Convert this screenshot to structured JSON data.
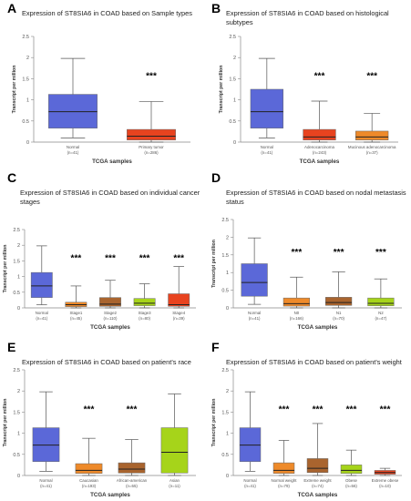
{
  "chart_data": [
    {
      "panel": "A",
      "type": "box",
      "title": [
        "Expression of ST8SIA6 in COAD based on Sample types"
      ],
      "xlabel": "TCGA samples",
      "ylabel": "Transcript per million",
      "ylim": [
        0,
        2.5
      ],
      "yticks": [
        "0",
        "0.5",
        "1",
        "1.5",
        "2",
        "2.5"
      ],
      "groups": [
        {
          "label": "Normal",
          "n": "(n=41)",
          "color": "#5b68d8",
          "min": 0.1,
          "q1": 0.33,
          "median": 0.72,
          "q3": 1.13,
          "max": 1.98,
          "sig": ""
        },
        {
          "label": "Primary tumor",
          "n": "(n=286)",
          "color": "#e8431f",
          "min": 0.0,
          "q1": 0.05,
          "median": 0.14,
          "q3": 0.3,
          "max": 0.96,
          "sig": "***"
        }
      ]
    },
    {
      "panel": "B",
      "type": "box",
      "title": [
        "Expression of ST8SIA6 in COAD based on histological",
        "subtypes"
      ],
      "xlabel": "TCGA samples",
      "ylabel": "Transcript per million",
      "ylim": [
        0,
        2.5
      ],
      "yticks": [
        "0",
        "0.5",
        "1",
        "1.5",
        "2",
        "2.5"
      ],
      "groups": [
        {
          "label": "Normal",
          "n": "(n=41)",
          "color": "#5b68d8",
          "min": 0.1,
          "q1": 0.33,
          "median": 0.72,
          "q3": 1.25,
          "max": 1.98,
          "sig": ""
        },
        {
          "label": "Adenocarcinoma",
          "n": "(n=243)",
          "color": "#e8431f",
          "min": 0.0,
          "q1": 0.05,
          "median": 0.12,
          "q3": 0.3,
          "max": 0.97,
          "sig": "***"
        },
        {
          "label": "Mucinous adenocarcinoma",
          "n": "(n=37)",
          "color": "#ee8a2a",
          "min": 0.0,
          "q1": 0.05,
          "median": 0.12,
          "q3": 0.26,
          "max": 0.68,
          "sig": "***"
        }
      ]
    },
    {
      "panel": "C",
      "type": "box",
      "title": [
        "Expression of ST8SIA6 in COAD based on individual cancer",
        "stages"
      ],
      "xlabel": "TCGA samples",
      "ylabel": "Transcript per million",
      "ylim": [
        0,
        2.5
      ],
      "yticks": [
        "0",
        "0.5",
        "1",
        "1.5",
        "2",
        "2.5"
      ],
      "groups": [
        {
          "label": "Normal",
          "n": "(n=41)",
          "color": "#5b68d8",
          "min": 0.1,
          "q1": 0.33,
          "median": 0.7,
          "q3": 1.13,
          "max": 1.98,
          "sig": ""
        },
        {
          "label": "Stage1",
          "n": "(n=45)",
          "color": "#ee8a2a",
          "min": 0.0,
          "q1": 0.04,
          "median": 0.1,
          "q3": 0.18,
          "max": 0.7,
          "sig": "***"
        },
        {
          "label": "Stage2",
          "n": "(n=110)",
          "color": "#a9642e",
          "min": 0.0,
          "q1": 0.05,
          "median": 0.12,
          "q3": 0.33,
          "max": 0.88,
          "sig": "***"
        },
        {
          "label": "Stage3",
          "n": "(n=80)",
          "color": "#a6d41a",
          "min": 0.0,
          "q1": 0.07,
          "median": 0.15,
          "q3": 0.3,
          "max": 0.77,
          "sig": "***"
        },
        {
          "label": "Stage4",
          "n": "(n=39)",
          "color": "#e8431f",
          "min": 0.0,
          "q1": 0.05,
          "median": 0.1,
          "q3": 0.45,
          "max": 1.32,
          "sig": "***"
        }
      ]
    },
    {
      "panel": "D",
      "type": "box",
      "title": [
        "Expression of ST8SIA6 in COAD based on nodal metastasis",
        "status"
      ],
      "xlabel": "TCGA samples",
      "ylabel": "Transcript per million",
      "ylim": [
        0,
        2.5
      ],
      "yticks": [
        "0",
        "0.5",
        "1",
        "1.5",
        "2",
        "2.5"
      ],
      "groups": [
        {
          "label": "Normal",
          "n": "(n=41)",
          "color": "#5b68d8",
          "min": 0.1,
          "q1": 0.33,
          "median": 0.72,
          "q3": 1.25,
          "max": 1.98,
          "sig": ""
        },
        {
          "label": "N0",
          "n": "(n=166)",
          "color": "#ee8a2a",
          "min": 0.0,
          "q1": 0.05,
          "median": 0.12,
          "q3": 0.28,
          "max": 0.87,
          "sig": "***"
        },
        {
          "label": "N1",
          "n": "(n=70)",
          "color": "#a9642e",
          "min": 0.0,
          "q1": 0.07,
          "median": 0.15,
          "q3": 0.3,
          "max": 1.02,
          "sig": "***"
        },
        {
          "label": "N2",
          "n": "(n=47)",
          "color": "#a6d41a",
          "min": 0.0,
          "q1": 0.06,
          "median": 0.13,
          "q3": 0.28,
          "max": 0.82,
          "sig": "***"
        }
      ]
    },
    {
      "panel": "E",
      "type": "box",
      "title": [
        "Expression of ST8SIA6 in COAD based on patient's race"
      ],
      "xlabel": "TCGA samples",
      "ylabel": "Transcript per million",
      "ylim": [
        0,
        2.5
      ],
      "yticks": [
        "0",
        "0.5",
        "1",
        "1.5",
        "2",
        "2.5"
      ],
      "groups": [
        {
          "label": "Normal",
          "n": "(n=41)",
          "color": "#5b68d8",
          "min": 0.1,
          "q1": 0.33,
          "median": 0.72,
          "q3": 1.13,
          "max": 1.98,
          "sig": ""
        },
        {
          "label": "Caucasian",
          "n": "(n=193)",
          "color": "#ee8a2a",
          "min": 0.0,
          "q1": 0.05,
          "median": 0.12,
          "q3": 0.28,
          "max": 0.88,
          "sig": "***"
        },
        {
          "label": "African-american",
          "n": "(n=55)",
          "color": "#a9642e",
          "min": 0.0,
          "q1": 0.06,
          "median": 0.15,
          "q3": 0.3,
          "max": 0.85,
          "sig": "***"
        },
        {
          "label": "Asian",
          "n": "(n=11)",
          "color": "#a6d41a",
          "min": 0.0,
          "q1": 0.06,
          "median": 0.55,
          "q3": 1.13,
          "max": 1.93,
          "sig": ""
        }
      ]
    },
    {
      "panel": "F",
      "type": "box",
      "title": [
        "Expression of ST8SIA6 in COAD based on patient's weight"
      ],
      "xlabel": "TCGA samples",
      "ylabel": "Transcript per million",
      "ylim": [
        0,
        2.5
      ],
      "yticks": [
        "0",
        "0.5",
        "1",
        "1.5",
        "2",
        "2.5"
      ],
      "groups": [
        {
          "label": "Normal",
          "n": "(n=41)",
          "color": "#5b68d8",
          "min": 0.1,
          "q1": 0.33,
          "median": 0.72,
          "q3": 1.13,
          "max": 1.98,
          "sig": ""
        },
        {
          "label": "Normal weight",
          "n": "(n=79)",
          "color": "#ee8a2a",
          "min": 0.0,
          "q1": 0.05,
          "median": 0.12,
          "q3": 0.3,
          "max": 0.83,
          "sig": "***"
        },
        {
          "label": "Extreme weight",
          "n": "(n=74)",
          "color": "#a9642e",
          "min": 0.0,
          "q1": 0.07,
          "median": 0.17,
          "q3": 0.4,
          "max": 1.23,
          "sig": "***"
        },
        {
          "label": "Obese",
          "n": "(n=56)",
          "color": "#a6d41a",
          "min": 0.0,
          "q1": 0.05,
          "median": 0.12,
          "q3": 0.25,
          "max": 0.6,
          "sig": "***"
        },
        {
          "label": "Extreme obese",
          "n": "(n=10)",
          "color": "#e8431f",
          "min": 0.0,
          "q1": 0.03,
          "median": 0.07,
          "q3": 0.12,
          "max": 0.17,
          "sig": "***"
        }
      ]
    }
  ]
}
